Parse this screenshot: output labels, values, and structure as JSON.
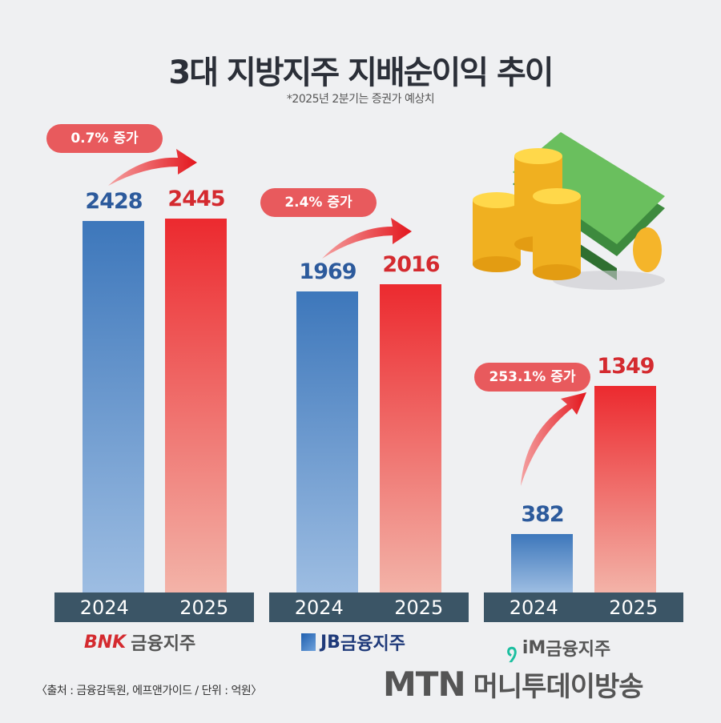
{
  "chart_data": {
    "type": "bar",
    "title": "3대 지방지주 지배순이익 추이",
    "subtitle": "*2025년 2분기는 증권가 예상치",
    "categories": [
      "BNK금융지주",
      "JB금융지주",
      "iM금융지주"
    ],
    "series": [
      {
        "name": "2024",
        "values": [
          2428,
          1969,
          382
        ]
      },
      {
        "name": "2025",
        "values": [
          2445,
          2016,
          1349
        ]
      }
    ],
    "annotations": [
      "0.7% 증가",
      "2.4% 증가",
      "253.1% 증가"
    ],
    "unit": "억원",
    "colors": {
      "2024": "#3d77bb",
      "2025": "#ec2a2f"
    }
  },
  "groups": [
    {
      "logo_mark": "BNK",
      "logo_text": "금융지주",
      "logo_color": "#d42a2f"
    },
    {
      "logo_mark": "JB",
      "logo_text": "금융지주",
      "logo_color": "#1f3a7a"
    },
    {
      "logo_mark": "iM",
      "logo_text": "금융지주",
      "logo_color": "#555555"
    }
  ],
  "source": "〈출처 : 금융감독원, 에프앤가이드 / 단위 : 억원〉",
  "brand": {
    "mtn": "MTN",
    "name": "머니투데이방송"
  }
}
